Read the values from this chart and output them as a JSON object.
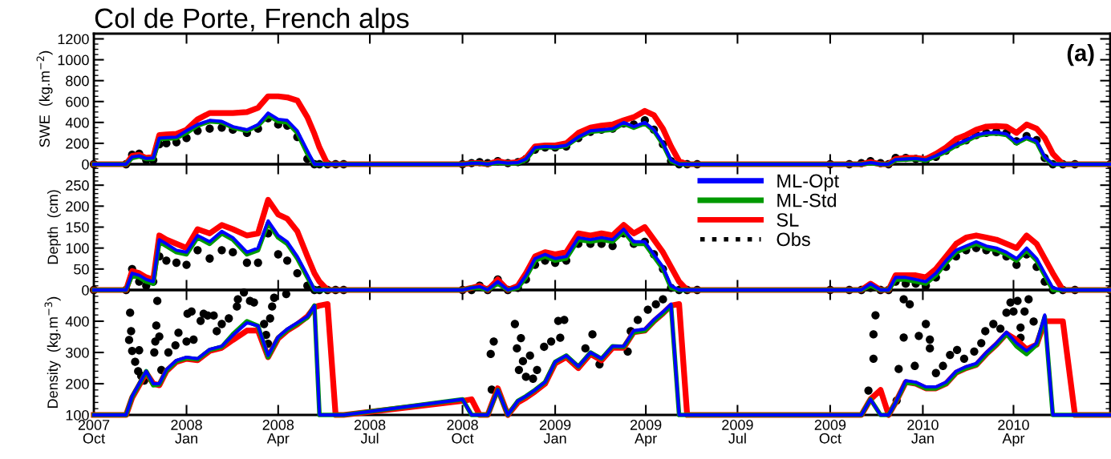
{
  "chart_data": [
    {
      "type": "line",
      "title": "Col de Porte, French alps",
      "ylabel": "SWE  (kg.m$^{−2}$)",
      "annotations": [
        "(a)"
      ],
      "tick_labels": "y",
      "x": [
        "2007-10-01",
        "2007-11-02",
        "2007-11-08",
        "2007-11-15",
        "2007-11-22",
        "2007-11-29",
        "2007-12-05",
        "2007-12-12",
        "2007-12-22",
        "2008-01-01",
        "2008-01-12",
        "2008-01-24",
        "2008-02-05",
        "2008-02-16",
        "2008-03-01",
        "2008-03-12",
        "2008-03-22",
        "2008-04-01",
        "2008-04-10",
        "2008-04-20",
        "2008-04-30",
        "2008-05-07",
        "2008-05-12",
        "2008-05-20",
        "2008-05-28",
        "2008-06-05",
        "2008-10-01",
        "2008-10-10",
        "2008-10-18",
        "2008-10-26",
        "2008-11-05",
        "2008-11-15",
        "2008-11-25",
        "2008-12-03",
        "2008-12-12",
        "2008-12-22",
        "2009-01-01",
        "2009-01-12",
        "2009-01-24",
        "2009-02-05",
        "2009-02-16",
        "2009-02-27",
        "2009-03-10",
        "2009-03-20",
        "2009-03-31",
        "2009-04-09",
        "2009-04-18",
        "2009-04-26",
        "2009-05-04",
        "2009-05-12",
        "2009-05-22",
        "2009-10-01",
        "2009-10-20",
        "2009-11-01",
        "2009-11-10",
        "2009-11-20",
        "2009-11-28",
        "2009-12-05",
        "2009-12-15",
        "2009-12-25",
        "2010-01-04",
        "2010-01-14",
        "2010-01-24",
        "2010-02-03",
        "2010-02-13",
        "2010-02-23",
        "2010-03-05",
        "2010-03-15",
        "2010-03-25",
        "2010-04-04",
        "2010-04-14",
        "2010-04-24",
        "2010-05-02",
        "2010-05-10",
        "2010-05-20",
        "2010-06-01",
        "2010-07-06"
      ],
      "series": [
        {
          "color": "#0000ff",
          "values": [
            0,
            0,
            70,
            80,
            55,
            60,
            250,
            255,
            260,
            320,
            380,
            420,
            410,
            360,
            330,
            380,
            490,
            430,
            420,
            320,
            130,
            0,
            0,
            0,
            0,
            0,
            0,
            10,
            10,
            0,
            20,
            10,
            15,
            50,
            160,
            170,
            165,
            180,
            260,
            320,
            330,
            340,
            400,
            360,
            400,
            330,
            200,
            40,
            0,
            0,
            0,
            0,
            0,
            0,
            15,
            0,
            0,
            45,
            50,
            55,
            40,
            80,
            130,
            190,
            230,
            280,
            300,
            305,
            290,
            210,
            260,
            220,
            70,
            0,
            0,
            0,
            0
          ]
        },
        {
          "color": "#009900",
          "values": [
            0,
            0,
            60,
            75,
            50,
            50,
            240,
            245,
            250,
            300,
            370,
            410,
            400,
            350,
            320,
            370,
            470,
            410,
            400,
            300,
            100,
            0,
            0,
            0,
            0,
            0,
            0,
            10,
            10,
            0,
            15,
            5,
            10,
            45,
            150,
            165,
            160,
            175,
            255,
            310,
            320,
            330,
            390,
            350,
            390,
            320,
            190,
            30,
            0,
            0,
            0,
            0,
            0,
            0,
            10,
            0,
            0,
            40,
            45,
            50,
            35,
            75,
            120,
            180,
            220,
            270,
            290,
            295,
            280,
            200,
            250,
            210,
            60,
            0,
            0,
            0,
            0
          ]
        },
        {
          "color": "#ff0000",
          "values": [
            0,
            0,
            80,
            90,
            60,
            70,
            280,
            285,
            290,
            330,
            430,
            490,
            490,
            490,
            500,
            540,
            650,
            650,
            640,
            610,
            450,
            290,
            160,
            0,
            0,
            0,
            0,
            10,
            10,
            0,
            30,
            10,
            20,
            60,
            170,
            180,
            180,
            200,
            300,
            350,
            370,
            380,
            420,
            450,
            510,
            470,
            340,
            170,
            30,
            0,
            0,
            0,
            0,
            0,
            20,
            0,
            0,
            50,
            60,
            60,
            50,
            100,
            160,
            240,
            280,
            330,
            360,
            365,
            360,
            300,
            380,
            340,
            250,
            100,
            0,
            0,
            0
          ]
        },
        {
          "type": "scatter",
          "marker": "circle",
          "color": "#000000",
          "values": [
            0,
            0,
            90,
            100,
            40,
            40,
            190,
            200,
            210,
            250,
            320,
            340,
            350,
            330,
            300,
            340,
            440,
            380,
            370,
            260,
            50,
            0,
            0,
            0,
            0,
            0,
            0,
            10,
            20,
            10,
            30,
            10,
            20,
            50,
            140,
            160,
            160,
            170,
            250,
            310,
            330,
            340,
            390,
            380,
            420,
            330,
            190,
            30,
            0,
            0,
            0,
            0,
            0,
            10,
            30,
            10,
            0,
            60,
            60,
            50,
            40,
            70,
            130,
            190,
            230,
            280,
            300,
            310,
            300,
            220,
            270,
            230,
            60,
            0,
            0,
            0,
            0
          ]
        }
      ],
      "xlim": [
        "2007-10-01",
        "2010-07-06"
      ],
      "xticks": [
        {
          "value": "2007-10-01",
          "label": null
        },
        {
          "value": "2008-01-01",
          "label": null
        },
        {
          "value": "2008-04-01",
          "label": null
        },
        {
          "value": "2008-07-01",
          "label": null
        },
        {
          "value": "2008-10-01",
          "label": null
        },
        {
          "value": "2009-01-01",
          "label": null
        },
        {
          "value": "2009-04-01",
          "label": null
        },
        {
          "value": "2009-07-01",
          "label": null
        },
        {
          "value": "2009-10-01",
          "label": null
        },
        {
          "value": "2010-01-01",
          "label": null
        },
        {
          "value": "2010-04-01",
          "label": null
        }
      ],
      "ylim": [
        0,
        1250
      ],
      "yticks": [
        0,
        200,
        400,
        600,
        800,
        1000,
        1200
      ]
    },
    {
      "type": "line",
      "ylabel": "Depth  (cm)",
      "tick_labels": "y",
      "legend": "top",
      "x": [
        "2007-10-01",
        "2007-11-02",
        "2007-11-08",
        "2007-11-15",
        "2007-11-22",
        "2007-11-29",
        "2007-12-05",
        "2007-12-12",
        "2007-12-22",
        "2008-01-01",
        "2008-01-12",
        "2008-01-24",
        "2008-02-05",
        "2008-02-16",
        "2008-03-01",
        "2008-03-12",
        "2008-03-22",
        "2008-04-01",
        "2008-04-10",
        "2008-04-20",
        "2008-04-30",
        "2008-05-07",
        "2008-05-12",
        "2008-05-20",
        "2008-05-28",
        "2008-06-05",
        "2008-10-01",
        "2008-10-10",
        "2008-10-18",
        "2008-10-26",
        "2008-11-05",
        "2008-11-15",
        "2008-11-25",
        "2008-12-03",
        "2008-12-12",
        "2008-12-22",
        "2009-01-01",
        "2009-01-12",
        "2009-01-24",
        "2009-02-05",
        "2009-02-16",
        "2009-02-27",
        "2009-03-10",
        "2009-03-20",
        "2009-03-31",
        "2009-04-09",
        "2009-04-18",
        "2009-04-26",
        "2009-05-04",
        "2009-05-12",
        "2009-05-22",
        "2009-10-01",
        "2009-10-20",
        "2009-11-01",
        "2009-11-10",
        "2009-11-20",
        "2009-11-28",
        "2009-12-05",
        "2009-12-15",
        "2009-12-25",
        "2010-01-04",
        "2010-01-14",
        "2010-01-24",
        "2010-02-03",
        "2010-02-13",
        "2010-02-23",
        "2010-03-05",
        "2010-03-15",
        "2010-03-25",
        "2010-04-04",
        "2010-04-14",
        "2010-04-24",
        "2010-05-02",
        "2010-05-10",
        "2010-05-20",
        "2010-06-01",
        "2010-07-06"
      ],
      "series": [
        {
          "name": "ML-Opt",
          "color": "#0000ff",
          "values": [
            0,
            0,
            40,
            35,
            25,
            20,
            120,
            110,
            95,
            90,
            130,
            115,
            140,
            125,
            90,
            100,
            165,
            130,
            115,
            80,
            35,
            0,
            0,
            0,
            0,
            0,
            0,
            5,
            8,
            0,
            20,
            0,
            8,
            35,
            75,
            85,
            75,
            80,
            125,
            120,
            125,
            120,
            145,
            115,
            115,
            85,
            55,
            10,
            0,
            0,
            0,
            0,
            0,
            0,
            15,
            0,
            0,
            30,
            30,
            25,
            20,
            40,
            70,
            95,
            105,
            115,
            105,
            100,
            90,
            75,
            100,
            75,
            40,
            5,
            0,
            0,
            0
          ]
        },
        {
          "name": "ML-Std",
          "color": "#009900",
          "values": [
            0,
            0,
            35,
            30,
            20,
            15,
            115,
            105,
            90,
            85,
            125,
            110,
            135,
            120,
            85,
            95,
            160,
            125,
            110,
            75,
            30,
            0,
            0,
            0,
            0,
            0,
            0,
            5,
            5,
            0,
            15,
            0,
            5,
            30,
            70,
            80,
            70,
            75,
            120,
            115,
            120,
            115,
            140,
            110,
            110,
            80,
            50,
            5,
            0,
            0,
            0,
            0,
            0,
            0,
            10,
            0,
            0,
            25,
            25,
            20,
            15,
            35,
            65,
            90,
            100,
            110,
            100,
            95,
            85,
            70,
            95,
            70,
            35,
            0,
            0,
            0,
            0
          ]
        },
        {
          "name": "SL",
          "color": "#ff0000",
          "values": [
            0,
            0,
            45,
            40,
            30,
            25,
            130,
            120,
            110,
            100,
            145,
            135,
            155,
            145,
            130,
            135,
            215,
            180,
            170,
            140,
            80,
            40,
            20,
            0,
            0,
            0,
            0,
            5,
            10,
            0,
            25,
            0,
            10,
            40,
            80,
            90,
            85,
            90,
            135,
            130,
            135,
            130,
            155,
            135,
            150,
            120,
            90,
            55,
            20,
            0,
            0,
            0,
            0,
            0,
            15,
            0,
            0,
            35,
            35,
            35,
            30,
            50,
            80,
            110,
            125,
            130,
            125,
            120,
            110,
            100,
            130,
            110,
            75,
            40,
            0,
            0,
            0
          ]
        },
        {
          "name": "Obs",
          "type": "scatter",
          "marker": "circle",
          "color": "#000000",
          "values": [
            0,
            0,
            50,
            20,
            10,
            20,
            80,
            70,
            65,
            60,
            95,
            75,
            95,
            90,
            65,
            65,
            135,
            85,
            70,
            40,
            10,
            0,
            0,
            0,
            0,
            0,
            0,
            0,
            10,
            0,
            25,
            0,
            5,
            25,
            60,
            70,
            65,
            70,
            110,
            110,
            110,
            105,
            135,
            110,
            115,
            85,
            50,
            5,
            0,
            0,
            0,
            0,
            0,
            0,
            5,
            0,
            0,
            20,
            15,
            15,
            10,
            30,
            55,
            80,
            95,
            100,
            95,
            90,
            80,
            60,
            85,
            55,
            20,
            0,
            0,
            0,
            0
          ]
        }
      ],
      "xlim": [
        "2007-10-01",
        "2010-07-06"
      ],
      "xticks": [
        {
          "value": "2007-10-01",
          "label": null
        },
        {
          "value": "2008-01-01",
          "label": null
        },
        {
          "value": "2008-04-01",
          "label": null
        },
        {
          "value": "2008-07-01",
          "label": null
        },
        {
          "value": "2008-10-01",
          "label": null
        },
        {
          "value": "2009-01-01",
          "label": null
        },
        {
          "value": "2009-04-01",
          "label": null
        },
        {
          "value": "2009-07-01",
          "label": null
        },
        {
          "value": "2009-10-01",
          "label": null
        },
        {
          "value": "2010-01-01",
          "label": null
        },
        {
          "value": "2010-04-01",
          "label": null
        }
      ],
      "ylim": [
        0,
        300
      ],
      "yticks": [
        0,
        50,
        100,
        150,
        200,
        250
      ]
    },
    {
      "type": "line",
      "ylabel": "Density  (kg.m$^{−3}$)",
      "x": [
        "2007-10-01",
        "2007-11-02",
        "2007-11-08",
        "2007-11-15",
        "2007-11-22",
        "2007-11-29",
        "2007-12-05",
        "2007-12-12",
        "2007-12-22",
        "2008-01-01",
        "2008-01-12",
        "2008-01-24",
        "2008-02-05",
        "2008-02-16",
        "2008-03-01",
        "2008-03-12",
        "2008-03-22",
        "2008-04-01",
        "2008-04-10",
        "2008-04-20",
        "2008-04-30",
        "2008-05-07",
        "2008-05-12",
        "2008-05-20",
        "2008-05-28",
        "2008-06-05",
        "2008-10-01",
        "2008-10-10",
        "2008-10-18",
        "2008-10-26",
        "2008-11-05",
        "2008-11-15",
        "2008-11-25",
        "2008-12-03",
        "2008-12-12",
        "2008-12-22",
        "2009-01-01",
        "2009-01-12",
        "2009-01-24",
        "2009-02-05",
        "2009-02-16",
        "2009-02-27",
        "2009-03-10",
        "2009-03-20",
        "2009-03-31",
        "2009-04-09",
        "2009-04-18",
        "2009-04-26",
        "2009-05-04",
        "2009-05-12",
        "2009-05-22",
        "2009-10-01",
        "2009-10-20",
        "2009-11-01",
        "2009-11-10",
        "2009-11-20",
        "2009-11-28",
        "2009-12-05",
        "2009-12-15",
        "2009-12-25",
        "2010-01-04",
        "2010-01-14",
        "2010-01-24",
        "2010-02-03",
        "2010-02-13",
        "2010-02-23",
        "2010-03-05",
        "2010-03-15",
        "2010-03-25",
        "2010-04-04",
        "2010-04-14",
        "2010-04-24",
        "2010-05-02",
        "2010-05-10",
        "2010-05-20",
        "2010-06-01",
        "2010-07-06"
      ],
      "series": [
        {
          "color": "#0000ff",
          "values": [
            100,
            100,
            160,
            200,
            240,
            200,
            200,
            245,
            275,
            285,
            280,
            310,
            320,
            355,
            395,
            385,
            290,
            350,
            375,
            395,
            415,
            450,
            100,
            100,
            100,
            100,
            150,
            100,
            100,
            100,
            180,
            100,
            145,
            160,
            180,
            205,
            270,
            290,
            255,
            300,
            280,
            320,
            320,
            370,
            375,
            405,
            430,
            455,
            100,
            100,
            100,
            100,
            100,
            100,
            150,
            100,
            100,
            140,
            210,
            205,
            190,
            190,
            205,
            240,
            255,
            265,
            300,
            330,
            365,
            330,
            305,
            330,
            420,
            100,
            100,
            100,
            100
          ]
        },
        {
          "color": "#009900",
          "values": [
            100,
            100,
            158,
            198,
            240,
            195,
            198,
            242,
            272,
            282,
            278,
            308,
            318,
            358,
            400,
            385,
            285,
            348,
            372,
            392,
            412,
            450,
            100,
            100,
            100,
            100,
            150,
            100,
            100,
            100,
            180,
            100,
            145,
            160,
            180,
            205,
            270,
            290,
            255,
            300,
            280,
            320,
            318,
            365,
            370,
            400,
            425,
            450,
            100,
            100,
            100,
            100,
            100,
            100,
            150,
            100,
            100,
            140,
            205,
            200,
            185,
            185,
            200,
            235,
            250,
            260,
            295,
            325,
            360,
            320,
            295,
            325,
            415,
            100,
            100,
            100,
            100
          ]
        },
        {
          "color": "#ff0000",
          "values": [
            100,
            100,
            155,
            195,
            235,
            200,
            195,
            240,
            270,
            280,
            275,
            305,
            315,
            340,
            370,
            370,
            285,
            345,
            370,
            390,
            415,
            445,
            450,
            455,
            100,
            100,
            145,
            150,
            100,
            100,
            185,
            100,
            140,
            155,
            175,
            200,
            265,
            285,
            250,
            295,
            275,
            315,
            315,
            365,
            370,
            400,
            425,
            450,
            455,
            100,
            100,
            100,
            100,
            100,
            150,
            180,
            100,
            140,
            205,
            200,
            185,
            185,
            200,
            235,
            250,
            260,
            295,
            325,
            360,
            340,
            310,
            325,
            400,
            400,
            400,
            100,
            100
          ]
        },
        {
          "type": "scatter",
          "marker": "circle",
          "color": "#000000",
          "x": [
            "2007-11-05",
            "2007-11-06",
            "2007-11-07",
            "2007-11-08",
            "2007-11-11",
            "2007-11-14",
            "2007-11-15",
            "2007-11-17",
            "2007-11-20",
            "2007-11-30",
            "2007-12-01",
            "2007-12-02",
            "2007-12-03",
            "2007-12-05",
            "2007-12-07",
            "2007-12-14",
            "2007-12-21",
            "2007-12-24",
            "2008-01-01",
            "2008-01-02",
            "2008-01-06",
            "2008-01-08",
            "2008-01-15",
            "2008-01-18",
            "2008-01-22",
            "2008-01-28",
            "2008-01-31",
            "2008-02-05",
            "2008-02-12",
            "2008-02-20",
            "2008-02-21",
            "2008-02-27",
            "2008-03-04",
            "2008-03-08",
            "2008-03-18",
            "2008-03-20",
            "2008-03-22",
            "2008-03-24",
            "2008-03-26",
            "2008-03-28",
            "2008-04-09",
            "2008-10-29",
            "2008-10-30",
            "2008-11-01",
            "2008-11-22",
            "2008-11-24",
            "2008-11-26",
            "2008-11-28",
            "2008-11-30",
            "2008-12-03",
            "2008-12-07",
            "2008-12-10",
            "2008-12-14",
            "2008-12-21",
            "2008-12-28",
            "2009-01-04",
            "2009-01-06",
            "2009-01-10",
            "2009-01-31",
            "2009-02-07",
            "2009-02-14",
            "2009-03-14",
            "2009-03-17",
            "2009-03-24",
            "2009-04-03",
            "2009-04-11",
            "2009-04-18",
            "2009-11-08",
            "2009-11-13",
            "2009-11-13",
            "2009-11-15",
            "2009-12-06",
            "2009-12-08",
            "2009-12-13",
            "2009-12-13",
            "2009-12-19",
            "2009-12-24",
            "2009-12-28",
            "2010-01-04",
            "2010-01-08",
            "2010-01-08",
            "2010-01-14",
            "2010-01-21",
            "2010-01-28",
            "2010-02-04",
            "2010-02-11",
            "2010-02-21",
            "2010-02-28",
            "2010-03-04",
            "2010-03-12",
            "2010-03-19",
            "2010-03-25",
            "2010-03-29",
            "2010-04-01",
            "2010-04-05",
            "2010-04-08",
            "2010-04-08",
            "2010-04-12",
            "2010-04-16",
            "2010-04-21"
          ],
          "values": [
            340,
            427,
            368,
            305,
            270,
            240,
            307,
            225,
            210,
            300,
            335,
            386,
            465,
            351,
            244,
            300,
            323,
            363,
            335,
            424,
            431,
            341,
            401,
            424,
            418,
            418,
            368,
            391,
            409,
            447,
            470,
            492,
            465,
            460,
            391,
            356,
            328,
            409,
            447,
            475,
            487,
            295,
            181,
            335,
            391,
            313,
            244,
            346,
            272,
            222,
            290,
            216,
            244,
            318,
            335,
            401,
            347,
            404,
            313,
            358,
            262,
            303,
            368,
            404,
            437,
            454,
            470,
            178,
            280,
            358,
            419,
            146,
            247,
            348,
            470,
            454,
            257,
            353,
            391,
            313,
            341,
            234,
            257,
            292,
            308,
            280,
            303,
            330,
            368,
            391,
            376,
            427,
            460,
            431,
            465,
            347,
            380,
            431,
            470,
            399
          ]
        }
      ],
      "xlim": [
        "2007-10-01",
        "2010-07-06"
      ],
      "xticks": [
        {
          "value": "2007-10-01",
          "label": "2007\nOct"
        },
        {
          "value": "2008-01-01",
          "label": "2008\nJan"
        },
        {
          "value": "2008-04-01",
          "label": "2008\nApr"
        },
        {
          "value": "2008-07-01",
          "label": "2008\nJul"
        },
        {
          "value": "2008-10-01",
          "label": "2008\nOct"
        },
        {
          "value": "2009-01-01",
          "label": "2009\nJan"
        },
        {
          "value": "2009-04-01",
          "label": "2009\nApr"
        },
        {
          "value": "2009-07-01",
          "label": "2009\nJul"
        },
        {
          "value": "2009-10-01",
          "label": "2009\nOct"
        },
        {
          "value": "2010-01-01",
          "label": "2010\nJan"
        },
        {
          "value": "2010-04-01",
          "label": "2010\nApr"
        }
      ],
      "ylim": [
        100,
        500
      ],
      "yticks": [
        100,
        200,
        300,
        400
      ]
    }
  ]
}
